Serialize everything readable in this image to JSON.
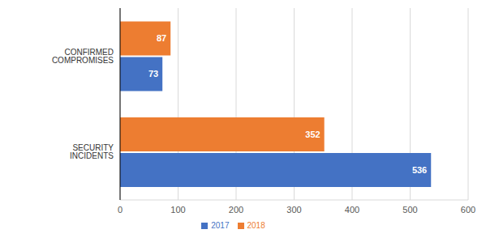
{
  "chart_data": {
    "type": "bar",
    "orientation": "horizontal",
    "categories": [
      "CONFIRMED COMPROMISES",
      "SECURITY INCIDENTS"
    ],
    "series": [
      {
        "name": "2018",
        "color": "#ed7d31",
        "values": [
          87,
          352
        ]
      },
      {
        "name": "2017",
        "color": "#4472c4",
        "values": [
          73,
          536
        ]
      }
    ],
    "xlim": [
      0,
      600
    ],
    "xticks": [
      0,
      100,
      200,
      300,
      400,
      500,
      600
    ],
    "grid": true,
    "legend": "bottom",
    "data_labels": true
  }
}
